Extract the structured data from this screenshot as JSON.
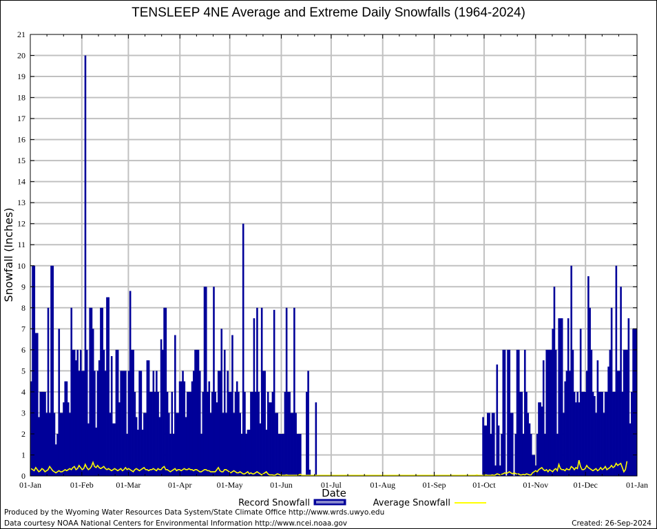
{
  "title": "TENSLEEP 4NE Average and Extreme Daily Snowfalls (1964-2024)",
  "footer": {
    "line1": "Produced by the Wyoming Water Resources Data System/State Climate Office http://www.wrds.uwyo.edu",
    "line2": "Data courtesy NOAA National Centers for Environmental Information http://www.ncei.noaa.gov",
    "created": "Created: 26-Sep-2024"
  },
  "colors": {
    "record": "#000099",
    "average": "#ffff00",
    "grid": "#c0c0c0"
  },
  "chart_data": {
    "type": "bar",
    "title": "TENSLEEP 4NE Average and Extreme Daily Snowfalls (1964-2024)",
    "xlabel": "Date",
    "ylabel": "Snowfall (Inches)",
    "ylim": [
      0,
      21
    ],
    "xlim_days": [
      1,
      366
    ],
    "grid": true,
    "legend_placement": "bottom",
    "yticks": [
      "0",
      "1",
      "2",
      "3",
      "4",
      "5",
      "6",
      "7",
      "8",
      "9",
      "10",
      "11",
      "12",
      "13",
      "14",
      "15",
      "16",
      "17",
      "18",
      "19",
      "20",
      "21"
    ],
    "xticks": [
      {
        "label": "01-Jan",
        "day": 1
      },
      {
        "label": "01-Feb",
        "day": 32
      },
      {
        "label": "01-Mar",
        "day": 60
      },
      {
        "label": "01-Apr",
        "day": 91
      },
      {
        "label": "01-May",
        "day": 121
      },
      {
        "label": "01-Jun",
        "day": 152
      },
      {
        "label": "01-Jul",
        "day": 182
      },
      {
        "label": "01-Aug",
        "day": 213
      },
      {
        "label": "01-Sep",
        "day": 244
      },
      {
        "label": "01-Oct",
        "day": 274
      },
      {
        "label": "01-Nov",
        "day": 305
      },
      {
        "label": "01-Dec",
        "day": 335
      },
      {
        "label": "01-Jan",
        "day": 366
      }
    ],
    "series": [
      {
        "name": "Record Snowfall",
        "type": "bar",
        "values": [
          4.5,
          10,
          10,
          6.8,
          6.8,
          2.8,
          4,
          4,
          4,
          4,
          3,
          8,
          3,
          10,
          10,
          3,
          1.5,
          2,
          7,
          3,
          3,
          3.5,
          4.5,
          4.5,
          3.5,
          3,
          8,
          6,
          6,
          5.5,
          6,
          5,
          6,
          5,
          5,
          20,
          6,
          2.5,
          8,
          8,
          7,
          5,
          2.3,
          5,
          5.5,
          8,
          8,
          6,
          5,
          8.5,
          8.5,
          3,
          5.7,
          2.5,
          2.5,
          6,
          6,
          3.5,
          5,
          5,
          5,
          5,
          2,
          5,
          8.8,
          6,
          6,
          4,
          2.8,
          2.2,
          5,
          5,
          2.2,
          3,
          3,
          5.5,
          5.5,
          4,
          4,
          5,
          4,
          5,
          4,
          2.8,
          6.5,
          6,
          8,
          8,
          4,
          3,
          2,
          4,
          2,
          6.7,
          3,
          3,
          4.5,
          4.5,
          5,
          4.5,
          2.8,
          4,
          4,
          4,
          4.5,
          5,
          6,
          6,
          6,
          5,
          2,
          4,
          9,
          9,
          4,
          4.5,
          3,
          4,
          9,
          4,
          3.5,
          5,
          5,
          7,
          3,
          6,
          3,
          5,
          4,
          4,
          6.7,
          3,
          4,
          4.5,
          4,
          3,
          2,
          12,
          4,
          2,
          2.2,
          2.2,
          4,
          4,
          7.5,
          4,
          8,
          4,
          2.5,
          8,
          5,
          5,
          2.2,
          4,
          3.5,
          3.5,
          4,
          7.9,
          3,
          3,
          2,
          2,
          2,
          2,
          4,
          8,
          4,
          4,
          3,
          3,
          8,
          3,
          2,
          2,
          2,
          0,
          0,
          0,
          4,
          5,
          0.3,
          0,
          0,
          0,
          3.5,
          0,
          0,
          0,
          0,
          0,
          0,
          0,
          0,
          0,
          0,
          0,
          0,
          0,
          0,
          0,
          0,
          0,
          0,
          0,
          0,
          0,
          0,
          0,
          0,
          0,
          0,
          0,
          0,
          0,
          0,
          0,
          0,
          0,
          0,
          0,
          0,
          0,
          0,
          0,
          0,
          0,
          0,
          0,
          0,
          0,
          0,
          0,
          0,
          0,
          0,
          0,
          0,
          0,
          0,
          0,
          0,
          0,
          0,
          0,
          0,
          0,
          0,
          0,
          0,
          0,
          0,
          0,
          0,
          0,
          0,
          0,
          0,
          0,
          0,
          0,
          0,
          0,
          0,
          0,
          0,
          0,
          0,
          0,
          0,
          0,
          0,
          0,
          0,
          0,
          0,
          0,
          0,
          0,
          0,
          0,
          0,
          0,
          0,
          0,
          0,
          0,
          0,
          0,
          0,
          0,
          0,
          0,
          2.8,
          2.4,
          2.4,
          3,
          3,
          2,
          3,
          3,
          0.5,
          5.3,
          2.4,
          0.5,
          2,
          6,
          6,
          0,
          6,
          6,
          3,
          3,
          0,
          2,
          6,
          6,
          4,
          4,
          2,
          6,
          4,
          3,
          2.5,
          2,
          1,
          1,
          0.5,
          2,
          3.5,
          3.5,
          3.3,
          5.5,
          2,
          6,
          6,
          6,
          6,
          7,
          9,
          6,
          2,
          7.5,
          7.5,
          7.5,
          3,
          4.5,
          5,
          7.5,
          5,
          10,
          6,
          4,
          3.5,
          4,
          3.5,
          7,
          4,
          4,
          4,
          5,
          9.5,
          8,
          6,
          4,
          3.8,
          3,
          5.5,
          4,
          4,
          4,
          3,
          4,
          4,
          5.2,
          6,
          8,
          4,
          4,
          10,
          5,
          5,
          9,
          4,
          6,
          6,
          6,
          7.5,
          2.5,
          4,
          7,
          7,
          7
        ]
      },
      {
        "name": "Average Snowfall",
        "type": "line",
        "values": [
          0.35,
          0.3,
          0.25,
          0.4,
          0.3,
          0.2,
          0.25,
          0.35,
          0.3,
          0.2,
          0.25,
          0.3,
          0.45,
          0.35,
          0.25,
          0.2,
          0.15,
          0.2,
          0.25,
          0.2,
          0.2,
          0.25,
          0.3,
          0.25,
          0.3,
          0.35,
          0.3,
          0.4,
          0.45,
          0.3,
          0.35,
          0.5,
          0.4,
          0.3,
          0.35,
          0.55,
          0.4,
          0.3,
          0.35,
          0.45,
          0.65,
          0.45,
          0.4,
          0.5,
          0.4,
          0.35,
          0.4,
          0.45,
          0.35,
          0.3,
          0.35,
          0.3,
          0.25,
          0.3,
          0.35,
          0.3,
          0.25,
          0.3,
          0.35,
          0.25,
          0.3,
          0.4,
          0.3,
          0.35,
          0.3,
          0.25,
          0.2,
          0.3,
          0.35,
          0.3,
          0.25,
          0.3,
          0.35,
          0.4,
          0.3,
          0.3,
          0.25,
          0.3,
          0.3,
          0.35,
          0.3,
          0.25,
          0.35,
          0.3,
          0.3,
          0.4,
          0.45,
          0.3,
          0.3,
          0.25,
          0.2,
          0.25,
          0.3,
          0.35,
          0.25,
          0.3,
          0.3,
          0.25,
          0.3,
          0.35,
          0.3,
          0.3,
          0.35,
          0.3,
          0.3,
          0.25,
          0.3,
          0.3,
          0.25,
          0.2,
          0.2,
          0.25,
          0.3,
          0.3,
          0.25,
          0.25,
          0.2,
          0.2,
          0.2,
          0.2,
          0.3,
          0.4,
          0.25,
          0.2,
          0.2,
          0.3,
          0.3,
          0.25,
          0.2,
          0.15,
          0.2,
          0.25,
          0.2,
          0.15,
          0.15,
          0.2,
          0.15,
          0.1,
          0.1,
          0.15,
          0.2,
          0.1,
          0.15,
          0.1,
          0.1,
          0.15,
          0.2,
          0.15,
          0.1,
          0.05,
          0.1,
          0.15,
          0.2,
          0.1,
          0.05,
          0.05,
          0.05,
          0.02,
          0.05,
          0.1,
          0.08,
          0.05,
          0.03,
          0.02,
          0.02,
          0.05,
          0.02,
          0.01,
          0.01,
          0.01,
          0,
          0,
          0,
          0.05,
          0.08,
          0.01,
          0,
          0,
          0,
          0.03,
          0,
          0,
          0,
          0,
          0,
          0,
          0,
          0,
          0,
          0,
          0,
          0,
          0,
          0,
          0,
          0,
          0,
          0,
          0,
          0,
          0,
          0,
          0,
          0,
          0,
          0,
          0,
          0,
          0,
          0,
          0,
          0,
          0,
          0,
          0,
          0,
          0,
          0,
          0,
          0,
          0,
          0,
          0,
          0,
          0,
          0,
          0,
          0,
          0,
          0,
          0,
          0,
          0,
          0,
          0,
          0,
          0,
          0,
          0,
          0,
          0,
          0,
          0,
          0,
          0,
          0,
          0,
          0,
          0,
          0,
          0,
          0,
          0,
          0,
          0,
          0,
          0,
          0,
          0,
          0,
          0,
          0,
          0,
          0,
          0,
          0,
          0,
          0,
          0,
          0,
          0,
          0,
          0,
          0,
          0,
          0,
          0,
          0,
          0,
          0,
          0,
          0,
          0,
          0.02,
          0.03,
          0.02,
          0.02,
          0.03,
          0.05,
          0.03,
          0.02,
          0.01,
          0.02,
          0.03,
          0.05,
          0.02,
          0.01,
          0.03,
          0.05,
          0.03,
          0.05,
          0.1,
          0.08,
          0.05,
          0.08,
          0.1,
          0.15,
          0.12,
          0.15,
          0.2,
          0.15,
          0.1,
          0.15,
          0.12,
          0.08,
          0.1,
          0.05,
          0.05,
          0.08,
          0.05,
          0.1,
          0.08,
          0.05,
          0.05,
          0.15,
          0.2,
          0.25,
          0.2,
          0.3,
          0.35,
          0.4,
          0.3,
          0.25,
          0.3,
          0.2,
          0.3,
          0.25,
          0.2,
          0.3,
          0.35,
          0.25,
          0.55,
          0.35,
          0.3,
          0.3,
          0.25,
          0.35,
          0.3,
          0.3,
          0.45,
          0.4,
          0.3,
          0.4,
          0.35,
          0.75,
          0.45,
          0.3,
          0.3,
          0.35,
          0.5,
          0.4,
          0.35,
          0.3,
          0.25,
          0.3,
          0.35,
          0.25,
          0.3,
          0.4,
          0.3,
          0.35,
          0.45,
          0.3,
          0.35,
          0.4,
          0.5,
          0.4,
          0.45,
          0.6,
          0.5,
          0.55,
          0.6,
          0.4,
          0.2,
          0.3,
          0.7
        ]
      }
    ]
  }
}
